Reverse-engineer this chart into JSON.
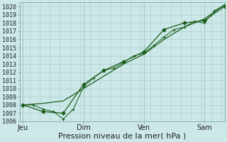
{
  "xlabel": "Pression niveau de la mer( hPa )",
  "background_color": "#cce8e8",
  "plot_bg_color": "#cce8e8",
  "grid_color": "#aac8c8",
  "line_color": "#1a5c1a",
  "ylim": [
    1006,
    1020.5
  ],
  "yticks": [
    1006,
    1007,
    1008,
    1009,
    1010,
    1011,
    1012,
    1013,
    1014,
    1015,
    1016,
    1017,
    1018,
    1019,
    1020
  ],
  "xtick_labels": [
    "Jeu",
    "Dim",
    "Ven",
    "Sam"
  ],
  "xtick_positions": [
    0,
    36,
    72,
    108
  ],
  "xlim": [
    -2,
    120
  ],
  "num_minor_xticks": 12,
  "line1_x": [
    0,
    12,
    24,
    36,
    48,
    60,
    72,
    84,
    96,
    108,
    120
  ],
  "line1_y": [
    1008.0,
    1008.2,
    1008.5,
    1010.0,
    1011.5,
    1013.0,
    1014.2,
    1016.0,
    1017.5,
    1018.5,
    1020.2
  ],
  "line2_x": [
    0,
    6,
    12,
    18,
    24,
    30,
    36,
    42,
    48,
    54,
    60,
    66,
    72,
    78,
    84,
    90,
    96,
    102,
    108,
    114,
    120
  ],
  "line2_y": [
    1008.0,
    1008.0,
    1007.5,
    1007.2,
    1006.3,
    1007.5,
    1010.2,
    1011.3,
    1012.2,
    1012.5,
    1013.2,
    1014.0,
    1014.3,
    1015.3,
    1016.3,
    1017.2,
    1017.5,
    1018.2,
    1018.0,
    1019.5,
    1020.2
  ],
  "line3_x": [
    0,
    12,
    24,
    36,
    48,
    60,
    72,
    84,
    96,
    108,
    120
  ],
  "line3_y": [
    1008.0,
    1007.2,
    1007.0,
    1010.5,
    1012.2,
    1013.3,
    1014.5,
    1017.2,
    1018.0,
    1018.3,
    1020.0
  ],
  "tick_fontsize": 6,
  "xlabel_fontsize": 8,
  "line_width": 0.9,
  "marker_size": 2.5
}
